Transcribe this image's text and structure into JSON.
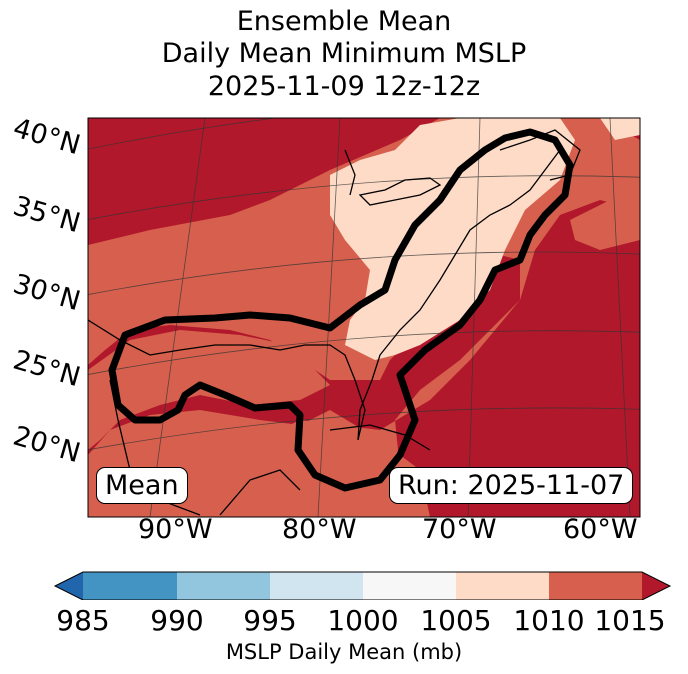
{
  "title": {
    "line1": "Ensemble Mean",
    "line2": "Daily Mean Minimum MSLP",
    "line3": "2025-11-09 12z-12z"
  },
  "map": {
    "lat_labels": [
      "40°N",
      "35°N",
      "30°N",
      "25°N",
      "20°N"
    ],
    "lon_labels": [
      "90°W",
      "80°W",
      "70°W",
      "60°W"
    ],
    "mean_box": "Mean",
    "run_box": "Run: 2025-11-07",
    "colors": {
      "c1015": "#b2182b",
      "c1010": "#d6604d",
      "c1005": "#fddbc7",
      "contour": "#000000"
    }
  },
  "colorbar": {
    "ticks": [
      "985",
      "990",
      "995",
      "1000",
      "1005",
      "1010",
      "1015"
    ],
    "colors": [
      "#2166ac",
      "#4393c3",
      "#92c5de",
      "#d1e5f0",
      "#f7f7f7",
      "#fddbc7",
      "#d6604d",
      "#b2182b"
    ],
    "label": "MSLP Daily Mean (mb)"
  }
}
